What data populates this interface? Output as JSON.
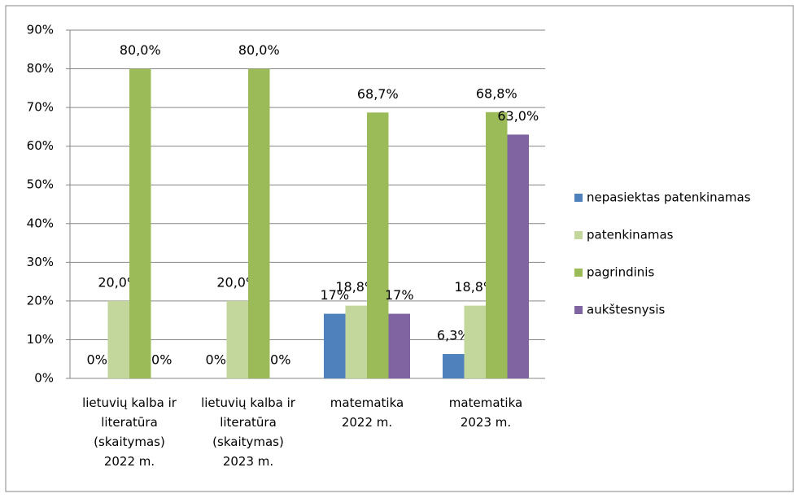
{
  "chart_data": {
    "type": "bar",
    "categories": [
      [
        "lietuvių kalba ir",
        "literatūra",
        "(skaitymas)",
        "2022 m."
      ],
      [
        "lietuvių kalba ir",
        "literatūra",
        "(skaitymas)",
        "2023 m."
      ],
      [
        "matematika",
        "2022 m."
      ],
      [
        "matematika",
        "2023 m."
      ]
    ],
    "series": [
      {
        "name": "nepasiektas patenkinamas",
        "color": "#4f81bd",
        "values": [
          0,
          0,
          16.7,
          6.3
        ],
        "value_labels": [
          "0%",
          "0%",
          "17%",
          "6,3%"
        ]
      },
      {
        "name": "patenkinamas",
        "color": "#c3d69b",
        "values": [
          20,
          20,
          18.8,
          18.8
        ],
        "value_labels": [
          "20,0%",
          "20,0%",
          "18,8%",
          "18,8%"
        ]
      },
      {
        "name": "pagrindinis",
        "color": "#9bbb59",
        "values": [
          80,
          80,
          68.7,
          68.8
        ],
        "value_labels": [
          "80,0%",
          "80,0%",
          "68,7%",
          "68,8%"
        ]
      },
      {
        "name": "aukštesnysis",
        "color": "#8064a2",
        "values": [
          0,
          0,
          16.7,
          63.0
        ],
        "value_labels": [
          "0%",
          "0%",
          "17%",
          "63,0%"
        ]
      }
    ],
    "ylim": [
      0,
      90
    ],
    "yticks": [
      {
        "value": 0,
        "label": "0%"
      },
      {
        "value": 10,
        "label": "10%"
      },
      {
        "value": 20,
        "label": "20%"
      },
      {
        "value": 30,
        "label": "30%"
      },
      {
        "value": 40,
        "label": "40%"
      },
      {
        "value": 50,
        "label": "50%"
      },
      {
        "value": 60,
        "label": "60%"
      },
      {
        "value": 70,
        "label": "70%"
      },
      {
        "value": 80,
        "label": "80%"
      },
      {
        "value": 90,
        "label": "90%"
      }
    ],
    "grid": true,
    "legend": "right"
  }
}
